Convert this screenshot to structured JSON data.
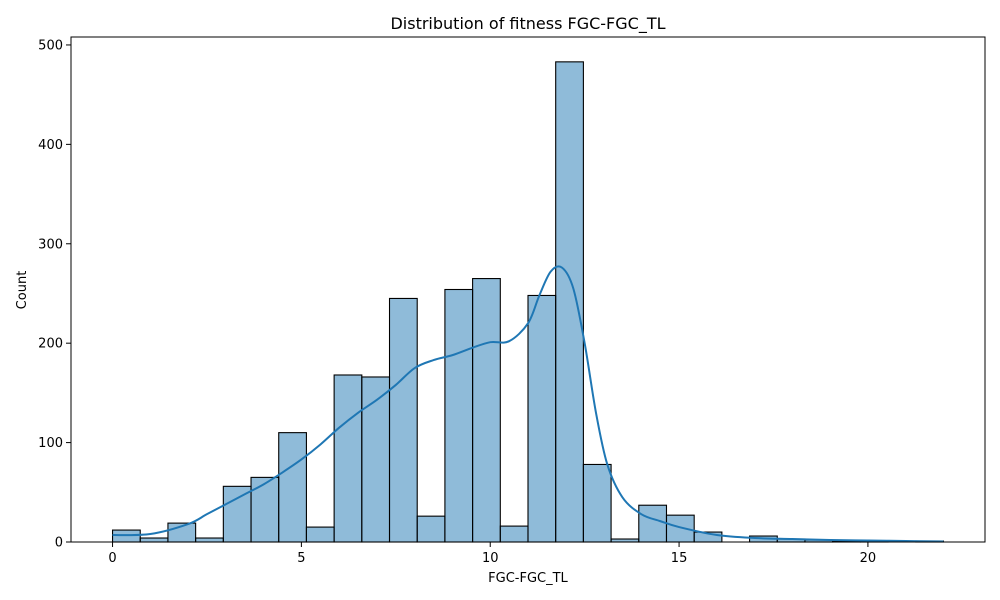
{
  "chart_data": {
    "type": "bar",
    "title": "Distribution of fitness FGC-FGC_TL",
    "xlabel": "FGC-FGC_TL",
    "ylabel": "Count",
    "xlim": [
      -1.1,
      23.1
    ],
    "ylim": [
      0,
      508
    ],
    "xticks": [
      0,
      5,
      10,
      15,
      20
    ],
    "yticks": [
      0,
      100,
      200,
      300,
      400,
      500
    ],
    "bin_width": 0.7333,
    "bin_start": 0,
    "bins": [
      {
        "x0": 0.0,
        "x1": 0.7333,
        "count": 12
      },
      {
        "x0": 0.7333,
        "x1": 1.4667,
        "count": 4
      },
      {
        "x0": 1.4667,
        "x1": 2.2,
        "count": 19
      },
      {
        "x0": 2.2,
        "x1": 2.9333,
        "count": 4
      },
      {
        "x0": 2.9333,
        "x1": 3.6667,
        "count": 56
      },
      {
        "x0": 3.6667,
        "x1": 4.4,
        "count": 65
      },
      {
        "x0": 4.4,
        "x1": 5.1333,
        "count": 110
      },
      {
        "x0": 5.1333,
        "x1": 5.8667,
        "count": 15
      },
      {
        "x0": 5.8667,
        "x1": 6.6,
        "count": 168
      },
      {
        "x0": 6.6,
        "x1": 7.3333,
        "count": 166
      },
      {
        "x0": 7.3333,
        "x1": 8.0667,
        "count": 245
      },
      {
        "x0": 8.0667,
        "x1": 8.8,
        "count": 26
      },
      {
        "x0": 8.8,
        "x1": 9.5333,
        "count": 254
      },
      {
        "x0": 9.5333,
        "x1": 10.2667,
        "count": 265
      },
      {
        "x0": 10.2667,
        "x1": 11.0,
        "count": 16
      },
      {
        "x0": 11.0,
        "x1": 11.7333,
        "count": 248
      },
      {
        "x0": 11.7333,
        "x1": 12.4667,
        "count": 483
      },
      {
        "x0": 12.4667,
        "x1": 13.2,
        "count": 78
      },
      {
        "x0": 13.2,
        "x1": 13.9333,
        "count": 3
      },
      {
        "x0": 13.9333,
        "x1": 14.6667,
        "count": 37
      },
      {
        "x0": 14.6667,
        "x1": 15.4,
        "count": 27
      },
      {
        "x0": 15.4,
        "x1": 16.1333,
        "count": 10
      },
      {
        "x0": 16.1333,
        "x1": 16.8667,
        "count": 0
      },
      {
        "x0": 16.8667,
        "x1": 17.6,
        "count": 6
      },
      {
        "x0": 17.6,
        "x1": 18.3333,
        "count": 3
      },
      {
        "x0": 18.3333,
        "x1": 19.0667,
        "count": 2
      },
      {
        "x0": 19.0667,
        "x1": 19.8,
        "count": 1
      },
      {
        "x0": 19.8,
        "x1": 20.5333,
        "count": 1
      },
      {
        "x0": 20.5333,
        "x1": 21.2667,
        "count": 0
      },
      {
        "x0": 21.2667,
        "x1": 22.0,
        "count": 1
      }
    ],
    "kde": {
      "x": [
        0,
        1,
        2,
        2.5,
        3,
        3.5,
        4,
        4.5,
        5,
        5.5,
        6,
        6.5,
        7,
        7.5,
        8,
        8.5,
        9,
        9.5,
        10,
        10.5,
        11,
        11.3,
        11.6,
        11.9,
        12.2,
        12.5,
        12.8,
        13.1,
        13.5,
        14,
        14.5,
        15,
        16,
        17,
        18,
        19,
        20,
        21,
        22
      ],
      "y": [
        7,
        8,
        18,
        28,
        38,
        48,
        58,
        70,
        83,
        98,
        115,
        130,
        143,
        158,
        175,
        183,
        188,
        195,
        201,
        202,
        220,
        248,
        272,
        276,
        255,
        200,
        130,
        78,
        45,
        28,
        21,
        15,
        7,
        4,
        3,
        2,
        1.5,
        1,
        0.5
      ]
    },
    "bar_color": "#1f77b4",
    "kde_color": "#1f77b4",
    "grid": false,
    "legend": false
  }
}
